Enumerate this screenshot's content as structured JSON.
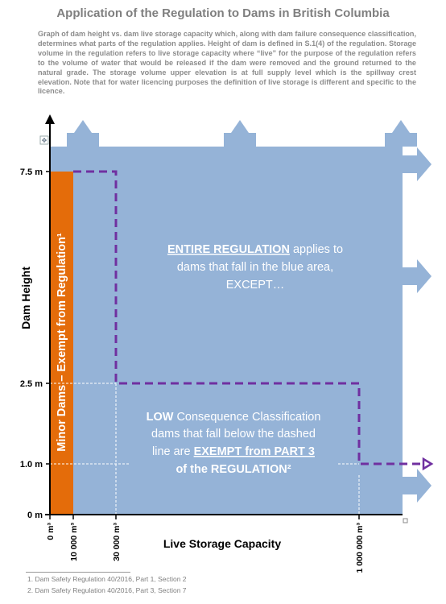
{
  "title": "Application of the Regulation to Dams in British Columbia",
  "description": "Graph of dam height vs. dam live storage capacity which, along with dam failure consequence classification, determines what parts of the regulation applies. Height of dam is defined in S.1(4) of the regulation. Storage volume in the regulation refers to live storage capacity where “live” for the purpose of the regulation refers to the volume of water that would be released if the dam were removed and the ground returned to the natural grade. The storage volume upper elevation is at full supply level which is the spillway crest elevation. Note that for water licencing purposes the definition of live storage is different and specific to the licence.",
  "colors": {
    "blue_area": "#95b3d7",
    "orange_area": "#e46c0a",
    "dashed_line": "#7030a0",
    "axis": "#000000"
  },
  "axes": {
    "y_label": "Dam Height",
    "x_label": "Live Storage Capacity",
    "y_ticks": [
      "7.5 m",
      "2.5 m",
      "1.0 m",
      "0 m"
    ],
    "x_ticks": [
      "0 m³",
      "10 000 m³",
      "30 000 m³",
      "1 000 000 m³"
    ]
  },
  "regions": {
    "minor_dams_label": "Minor Dams – Exempt from Regulation¹",
    "entire_regulation": {
      "line1_emph": "ENTIRE REGULATION",
      "line1_rest": " applies to",
      "line2": "dams that fall in the blue area,",
      "line3": "EXCEPT…"
    },
    "low_consequence": {
      "line1_emph": "LOW",
      "line1_rest": " Consequence Classification",
      "line2": "dams that fall below the dashed",
      "line3_plain": "line are ",
      "line3_emph": "EXEMPT from PART 3",
      "line4": "of the REGULATION²"
    }
  },
  "footnotes": [
    "1.  Dam Safety Regulation 40/2016, Part 1, Section 2",
    "2.  Dam Safety Regulation 40/2016, Part 3, Section 7"
  ]
}
